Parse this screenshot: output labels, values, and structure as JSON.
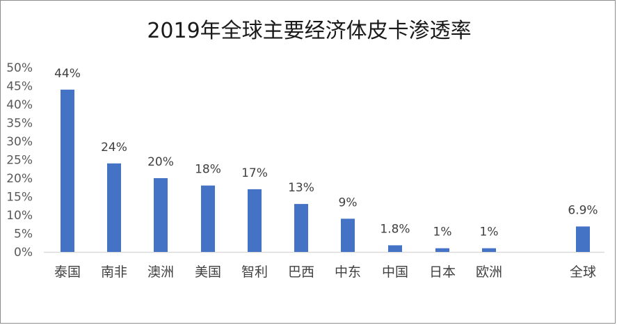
{
  "chart_data": {
    "type": "bar",
    "title": "2019年全球主要经济体皮卡渗透率",
    "categories": [
      "泰国",
      "南非",
      "澳洲",
      "美国",
      "智利",
      "巴西",
      "中东",
      "中国",
      "日本",
      "欧洲",
      "全球"
    ],
    "values": [
      44,
      24,
      20,
      18,
      17,
      13,
      9,
      1.8,
      1,
      1,
      6.9
    ],
    "data_labels": [
      "44%",
      "24%",
      "20%",
      "18%",
      "17%",
      "13%",
      "9%",
      "1.8%",
      "1%",
      "1%",
      "6.9%"
    ],
    "ylim": [
      0,
      50
    ],
    "yticks": [
      "0%",
      "5%",
      "10%",
      "15%",
      "20%",
      "25%",
      "30%",
      "35%",
      "40%",
      "45%",
      "50%"
    ],
    "xlabel": "",
    "ylabel": "",
    "grid": false,
    "legend": "none",
    "bar_color": "#4472c4",
    "axis_color": "#d9d9d9"
  }
}
